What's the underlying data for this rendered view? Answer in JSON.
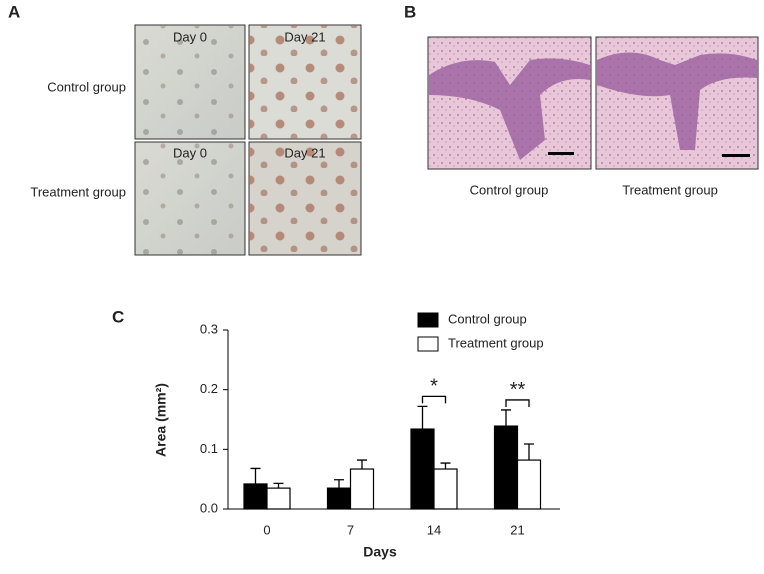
{
  "panel_a": {
    "label": "A",
    "rows": [
      {
        "name": "Control group",
        "images": [
          "Day 0",
          "Day 21"
        ]
      },
      {
        "name": "Treatment group",
        "images": [
          "Day 0",
          "Day 21"
        ]
      }
    ]
  },
  "panel_b": {
    "label": "B",
    "images": [
      "Control group",
      "Treatment group"
    ]
  },
  "chart_data": {
    "type": "bar",
    "label": "C",
    "ylabel": "Area (mm²)",
    "xlabel": "Days",
    "categories": [
      "0",
      "7",
      "14",
      "21"
    ],
    "series": [
      {
        "name": "Control group",
        "color": "#000000",
        "values": [
          0.042,
          0.035,
          0.134,
          0.139
        ],
        "errors": [
          0.026,
          0.014,
          0.038,
          0.027
        ]
      },
      {
        "name": "Treatment group",
        "color": "#ffffff",
        "values": [
          0.035,
          0.067,
          0.067,
          0.082
        ],
        "errors": [
          0.008,
          0.015,
          0.01,
          0.027
        ]
      }
    ],
    "ylim": [
      0,
      0.3
    ],
    "yticks": [
      {
        "value": 0,
        "label": "0.0"
      },
      0.1,
      0.2,
      0.3
    ],
    "annotations": [
      {
        "category": 2,
        "text": "*"
      },
      {
        "category": 3,
        "text": "**"
      }
    ],
    "legend": "top-right"
  }
}
